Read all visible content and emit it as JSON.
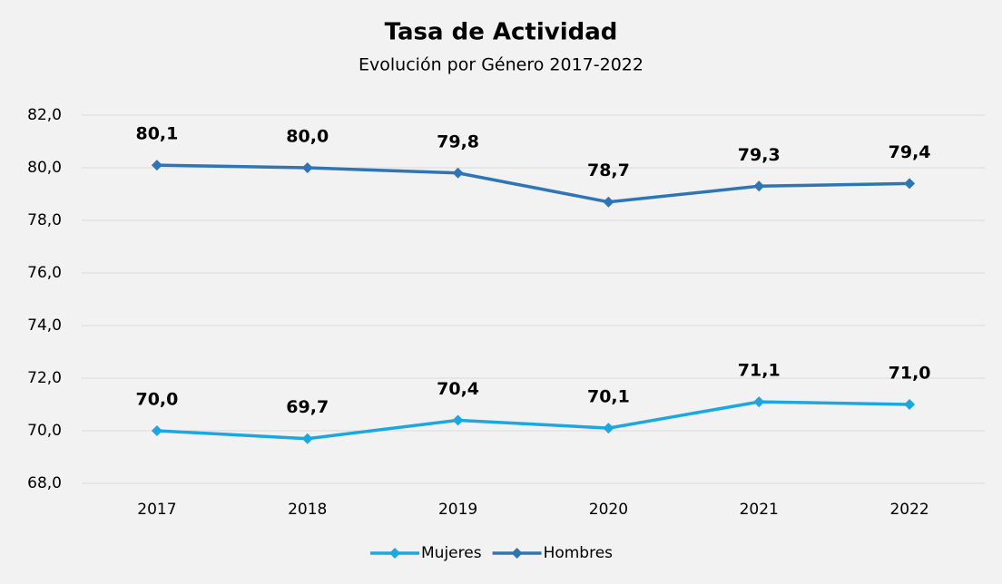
{
  "chart_data": {
    "type": "line",
    "title": "Tasa de Actividad",
    "subtitle": "Evolución por Género 2017-2022",
    "categories": [
      "2017",
      "2018",
      "2019",
      "2020",
      "2021",
      "2022"
    ],
    "series": [
      {
        "name": "Mujeres",
        "color": "#1ba7e1",
        "values": [
          70.0,
          69.7,
          70.4,
          70.1,
          71.1,
          71.0
        ],
        "value_labels": [
          "70,0",
          "69,7",
          "70,4",
          "70,1",
          "71,1",
          "71,0"
        ]
      },
      {
        "name": "Hombres",
        "color": "#2e75b6",
        "values": [
          80.1,
          80.0,
          79.8,
          78.7,
          79.3,
          79.4
        ],
        "value_labels": [
          "80,1",
          "80,0",
          "79,8",
          "78,7",
          "79,3",
          "79,4"
        ]
      }
    ],
    "ylim": [
      68,
      82
    ],
    "yticks": [
      {
        "value": 68,
        "label": "68,0"
      },
      {
        "value": 70,
        "label": "70,0"
      },
      {
        "value": 72,
        "label": "72,0"
      },
      {
        "value": 74,
        "label": "74,0"
      },
      {
        "value": 76,
        "label": "76,0"
      },
      {
        "value": 78,
        "label": "78,0"
      },
      {
        "value": 80,
        "label": "80,0"
      },
      {
        "value": 82,
        "label": "82,0"
      }
    ],
    "grid": true,
    "legend": "bottom"
  }
}
